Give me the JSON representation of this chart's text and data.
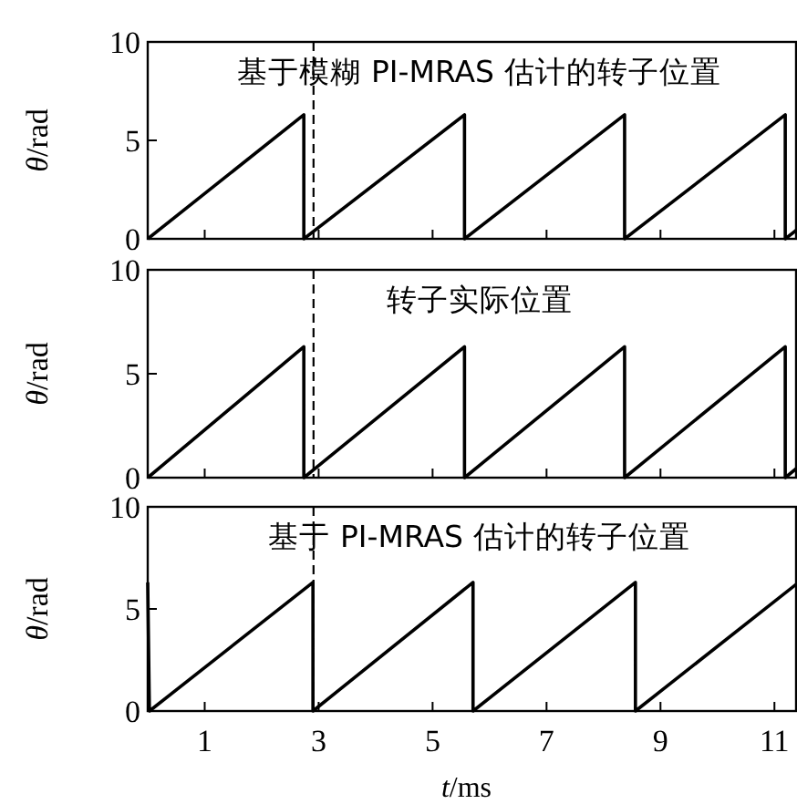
{
  "chart_data": [
    {
      "type": "line",
      "title": "基于模糊 PI-MRAS 估计的转子位置",
      "ylabel": "*θ*/rad",
      "x": [
        0,
        2.74,
        2.74,
        5.56,
        5.56,
        8.37,
        8.37,
        11.19,
        11.19,
        11.38
      ],
      "values": [
        0,
        6.3,
        0,
        6.3,
        0,
        6.3,
        0,
        6.3,
        0,
        0.43
      ],
      "color": "#000000",
      "xlim": [
        0,
        11.38
      ],
      "ylim": [
        0,
        10
      ],
      "xticks": [
        1,
        3,
        5,
        7,
        9,
        11
      ],
      "yticks": [
        0,
        5,
        10
      ],
      "tick_labels": "y",
      "ref_lines": [
        {
          "axis": "x",
          "value": 2.91,
          "line_style": "dashed"
        }
      ]
    },
    {
      "type": "line",
      "title": "转子实际位置",
      "ylabel": "*θ*/rad",
      "x": [
        0,
        2.74,
        2.74,
        5.56,
        5.56,
        8.37,
        8.37,
        11.19,
        11.19,
        11.38
      ],
      "values": [
        0,
        6.3,
        0,
        6.3,
        0,
        6.3,
        0,
        6.3,
        0,
        0.43
      ],
      "color": "#000000",
      "xlim": [
        0,
        11.38
      ],
      "ylim": [
        0,
        10
      ],
      "xticks": [
        1,
        3,
        5,
        7,
        9,
        11
      ],
      "yticks": [
        0,
        5,
        10
      ],
      "tick_labels": "y",
      "ref_lines": [
        {
          "axis": "x",
          "value": 2.91,
          "line_style": "dashed"
        }
      ]
    },
    {
      "type": "line",
      "title": "基于 PI-MRAS 估计的转子位置",
      "ylabel": "*θ*/rad",
      "xlabel": "*t*/ms",
      "x": [
        0,
        0.03,
        2.9,
        2.9,
        5.71,
        5.71,
        8.56,
        8.56,
        11.38
      ],
      "values": [
        6.3,
        0,
        6.3,
        0,
        6.3,
        0,
        6.3,
        0,
        6.2
      ],
      "color": "#000000",
      "xlim": [
        0,
        11.38
      ],
      "ylim": [
        0,
        10
      ],
      "xticks": [
        1,
        3,
        5,
        7,
        9,
        11
      ],
      "yticks": [
        0,
        5,
        10
      ],
      "ref_lines": [
        {
          "axis": "x",
          "value": 2.91,
          "line_style": "dashed"
        }
      ]
    }
  ]
}
